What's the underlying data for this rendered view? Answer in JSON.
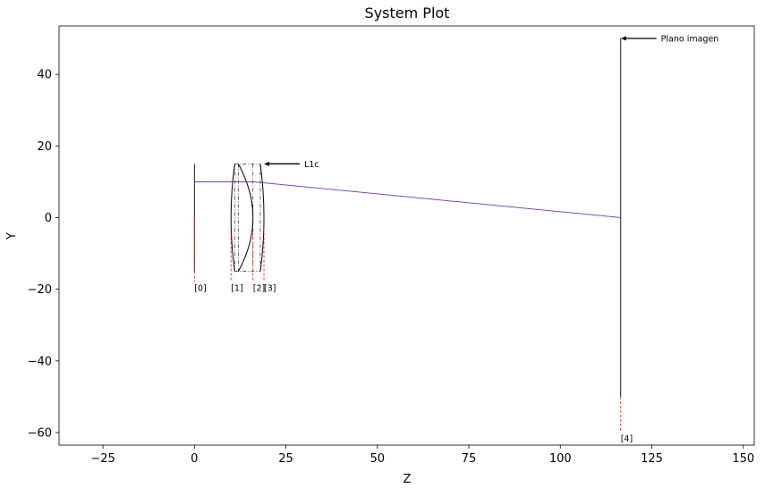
{
  "chart_data": {
    "type": "line",
    "title": "System Plot",
    "xlabel": "Z",
    "ylabel": "Y",
    "xlim": [
      -37,
      153
    ],
    "ylim": [
      -63.5,
      53.5
    ],
    "xticks": [
      -25,
      0,
      25,
      50,
      75,
      100,
      125,
      150
    ],
    "yticks": [
      -60,
      -40,
      -20,
      0,
      20,
      40
    ],
    "grid": false,
    "colors": {
      "ray": "#7a2f9e",
      "lens": "#000000",
      "surface_marker": "#ff0000"
    },
    "surfaces": [
      {
        "label": "[0]",
        "z": 0,
        "semi_diameter": 15
      },
      {
        "label": "[1]",
        "z": 10,
        "semi_diameter": 15
      },
      {
        "label": "[2]",
        "z": 16,
        "semi_diameter": 15
      },
      {
        "label": "[3]",
        "z": 19,
        "semi_diameter": 15
      },
      {
        "label": "[4]",
        "z": 116.5,
        "semi_diameter": 50
      }
    ],
    "ray": [
      {
        "z": 0,
        "y": 10
      },
      {
        "z": 11,
        "y": 10
      },
      {
        "z": 16,
        "y": 10
      },
      {
        "z": 19,
        "y": 9.7
      },
      {
        "z": 116.5,
        "y": 0
      }
    ],
    "annotations": [
      {
        "text": "L1c",
        "point": {
          "z": 19,
          "y": 15
        },
        "text_at": {
          "z": 29.5,
          "y": 15
        }
      },
      {
        "text": "Plano imagen",
        "point": {
          "z": 116.5,
          "y": 50
        },
        "text_at": {
          "z": 127,
          "y": 50
        }
      }
    ]
  }
}
